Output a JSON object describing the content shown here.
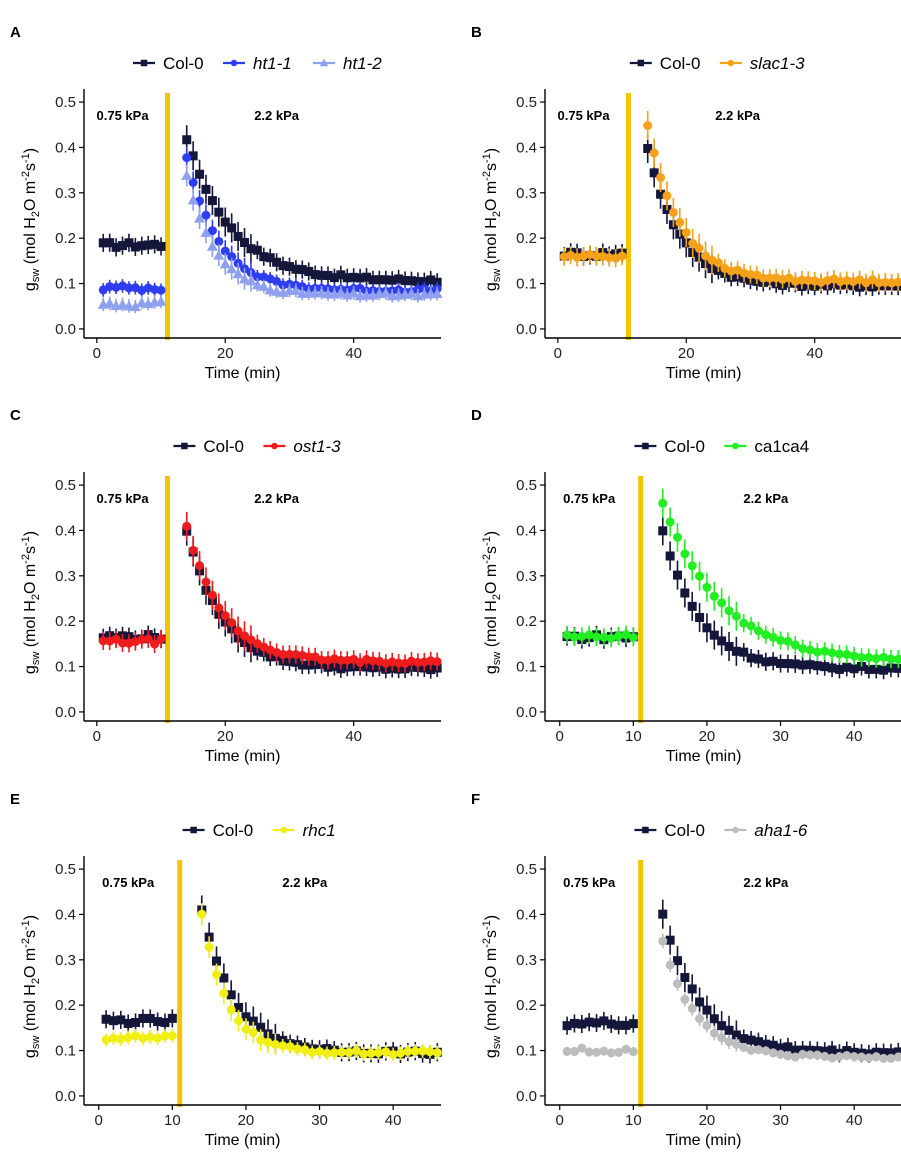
{
  "chart_data": [
    {
      "panel": "A",
      "type": "scatter",
      "xlabel": "Time (min)",
      "ylabel": "gsw (mol H2O m-2s-1)",
      "ylabel_parts": {
        "g": "g",
        "sw": "sw",
        "pre": " (mol H",
        "h2o_sub": "2",
        "mid": "O m",
        "m_sup": "-2",
        "s": "s",
        "s_sup": "-1",
        "end": ")"
      },
      "xlim": [
        -2,
        53.6
      ],
      "ylim": [
        -0.02,
        0.52
      ],
      "xticks": [
        0,
        20,
        40
      ],
      "yticks": [
        "0.0",
        "0.1",
        "0.2",
        "0.3",
        "0.4",
        "0.5"
      ],
      "yticks_values": [
        0,
        0.1,
        0.2,
        0.3,
        0.4,
        0.5
      ],
      "vline_x": 11,
      "annotations": [
        {
          "text": "0.75 kPa",
          "x": 4
        },
        {
          "text": "2.2 kPa",
          "x": 28
        }
      ],
      "series": [
        {
          "name": "Col-0",
          "italic": false,
          "color": "#14163a",
          "marker": "square",
          "pre": 0.185,
          "peak": 0.42,
          "final": 0.105,
          "tau": 7,
          "err": 0.02
        },
        {
          "name": "ht1-1",
          "italic": true,
          "color": "#2e3df0",
          "marker": "circle",
          "pre": 0.09,
          "peak": 0.38,
          "final": 0.085,
          "tau": 5,
          "err": 0.015
        },
        {
          "name": "ht1-2",
          "italic": true,
          "color": "#8fa0f0",
          "marker": "triangle",
          "pre": 0.055,
          "peak": 0.34,
          "final": 0.075,
          "tau": 4.5,
          "err": 0.015
        }
      ]
    },
    {
      "panel": "B",
      "type": "scatter",
      "xlabel": "Time (min)",
      "ylabel": "gsw (mol H2O m-2s-1)",
      "xlim": [
        -2,
        53.6
      ],
      "ylim": [
        -0.02,
        0.52
      ],
      "xticks": [
        0,
        20,
        40
      ],
      "yticks": [
        "0.0",
        "0.1",
        "0.2",
        "0.3",
        "0.4",
        "0.5"
      ],
      "yticks_values": [
        0,
        0.1,
        0.2,
        0.3,
        0.4,
        0.5
      ],
      "vline_x": 11,
      "annotations": [
        {
          "text": "0.75 kPa",
          "x": 4
        },
        {
          "text": "2.2 kPa",
          "x": 28
        }
      ],
      "series": [
        {
          "name": "Col-0",
          "italic": false,
          "color": "#14163a",
          "marker": "square",
          "pre": 0.165,
          "peak": 0.4,
          "final": 0.095,
          "tau": 5,
          "err": 0.02
        },
        {
          "name": "slac1-3",
          "italic": true,
          "color": "#f5a21b",
          "marker": "circle",
          "pre": 0.16,
          "peak": 0.45,
          "final": 0.105,
          "tau": 5,
          "err": 0.02
        }
      ]
    },
    {
      "panel": "C",
      "type": "scatter",
      "xlabel": "Time (min)",
      "ylabel": "gsw (mol H2O m-2s-1)",
      "xlim": [
        -2,
        53.6
      ],
      "ylim": [
        -0.02,
        0.52
      ],
      "xticks": [
        0,
        20,
        40
      ],
      "yticks": [
        "0.0",
        "0.1",
        "0.2",
        "0.3",
        "0.4",
        "0.5"
      ],
      "yticks_values": [
        0,
        0.1,
        0.2,
        0.3,
        0.4,
        0.5
      ],
      "vline_x": 11,
      "annotations": [
        {
          "text": "0.75 kPa",
          "x": 4
        },
        {
          "text": "2.2 kPa",
          "x": 28
        }
      ],
      "series": [
        {
          "name": "Col-0",
          "italic": false,
          "color": "#14163a",
          "marker": "square",
          "pre": 0.165,
          "peak": 0.4,
          "final": 0.095,
          "tau": 5.5,
          "err": 0.02
        },
        {
          "name": "ost1-3",
          "italic": true,
          "color": "#ee1c1c",
          "marker": "circle",
          "pre": 0.155,
          "peak": 0.41,
          "final": 0.11,
          "tau": 5.5,
          "err": 0.02
        }
      ]
    },
    {
      "panel": "D",
      "type": "scatter",
      "xlabel": "Time (min)",
      "ylabel": "gsw (mol H2O m-2s-1)",
      "xlim": [
        -2,
        46.5
      ],
      "ylim": [
        -0.02,
        0.52
      ],
      "xticks": [
        0,
        10,
        20,
        30,
        40
      ],
      "yticks": [
        "0.0",
        "0.1",
        "0.2",
        "0.3",
        "0.4",
        "0.5"
      ],
      "yticks_values": [
        0,
        0.1,
        0.2,
        0.3,
        0.4,
        0.5
      ],
      "vline_x": 11,
      "annotations": [
        {
          "text": "0.75 kPa",
          "x": 4
        },
        {
          "text": "2.2 kPa",
          "x": 28
        }
      ],
      "series": [
        {
          "name": "Col-0",
          "italic": false,
          "color": "#14163a",
          "marker": "square",
          "pre": 0.165,
          "peak": 0.4,
          "final": 0.095,
          "tau": 5,
          "err": 0.02
        },
        {
          "name": "ca1ca4",
          "italic": false,
          "color": "#22ee22",
          "marker": "circle",
          "pre": 0.165,
          "peak": 0.46,
          "final": 0.11,
          "tau": 8,
          "err": 0.02
        }
      ]
    },
    {
      "panel": "E",
      "type": "scatter",
      "xlabel": "Time (min)",
      "ylabel": "gsw (mol H2O m-2s-1)",
      "xlim": [
        -2,
        46.5
      ],
      "ylim": [
        -0.02,
        0.52
      ],
      "xticks": [
        0,
        10,
        20,
        30,
        40
      ],
      "yticks": [
        "0.0",
        "0.1",
        "0.2",
        "0.3",
        "0.4",
        "0.5"
      ],
      "yticks_values": [
        0,
        0.1,
        0.2,
        0.3,
        0.4,
        0.5
      ],
      "vline_x": 11,
      "annotations": [
        {
          "text": "0.75 kPa",
          "x": 4
        },
        {
          "text": "2.2 kPa",
          "x": 28
        }
      ],
      "series": [
        {
          "name": "Col-0",
          "italic": false,
          "color": "#14163a",
          "marker": "square",
          "pre": 0.165,
          "peak": 0.41,
          "final": 0.095,
          "tau": 4.5,
          "err": 0.02
        },
        {
          "name": "rhc1",
          "italic": true,
          "color": "#f1ee14",
          "marker": "circle",
          "pre": 0.128,
          "peak": 0.4,
          "final": 0.095,
          "tau": 3.5,
          "err": 0.015
        }
      ]
    },
    {
      "panel": "F",
      "type": "scatter",
      "xlabel": "Time (min)",
      "ylabel": "gsw (mol H2O m-2s-1)",
      "xlim": [
        -2,
        46.5
      ],
      "ylim": [
        -0.02,
        0.52
      ],
      "xticks": [
        0,
        10,
        20,
        30,
        40
      ],
      "yticks": [
        "0.0",
        "0.1",
        "0.2",
        "0.3",
        "0.4",
        "0.5"
      ],
      "yticks_values": [
        0,
        0.1,
        0.2,
        0.3,
        0.4,
        0.5
      ],
      "vline_x": 11,
      "annotations": [
        {
          "text": "0.75 kPa",
          "x": 4
        },
        {
          "text": "2.2 kPa",
          "x": 28
        }
      ],
      "series": [
        {
          "name": "Col-0",
          "italic": false,
          "color": "#14163a",
          "marker": "square",
          "pre": 0.16,
          "peak": 0.4,
          "final": 0.095,
          "tau": 5,
          "err": 0.02
        },
        {
          "name": "aha1-6",
          "italic": true,
          "color": "#bdbdbd",
          "marker": "circle",
          "pre": 0.1,
          "peak": 0.34,
          "final": 0.085,
          "tau": 4.5,
          "err": 0.01
        }
      ]
    }
  ],
  "colors": {
    "vline": "#f5c400",
    "axis": "#000000",
    "errorbar": "#14163a"
  }
}
